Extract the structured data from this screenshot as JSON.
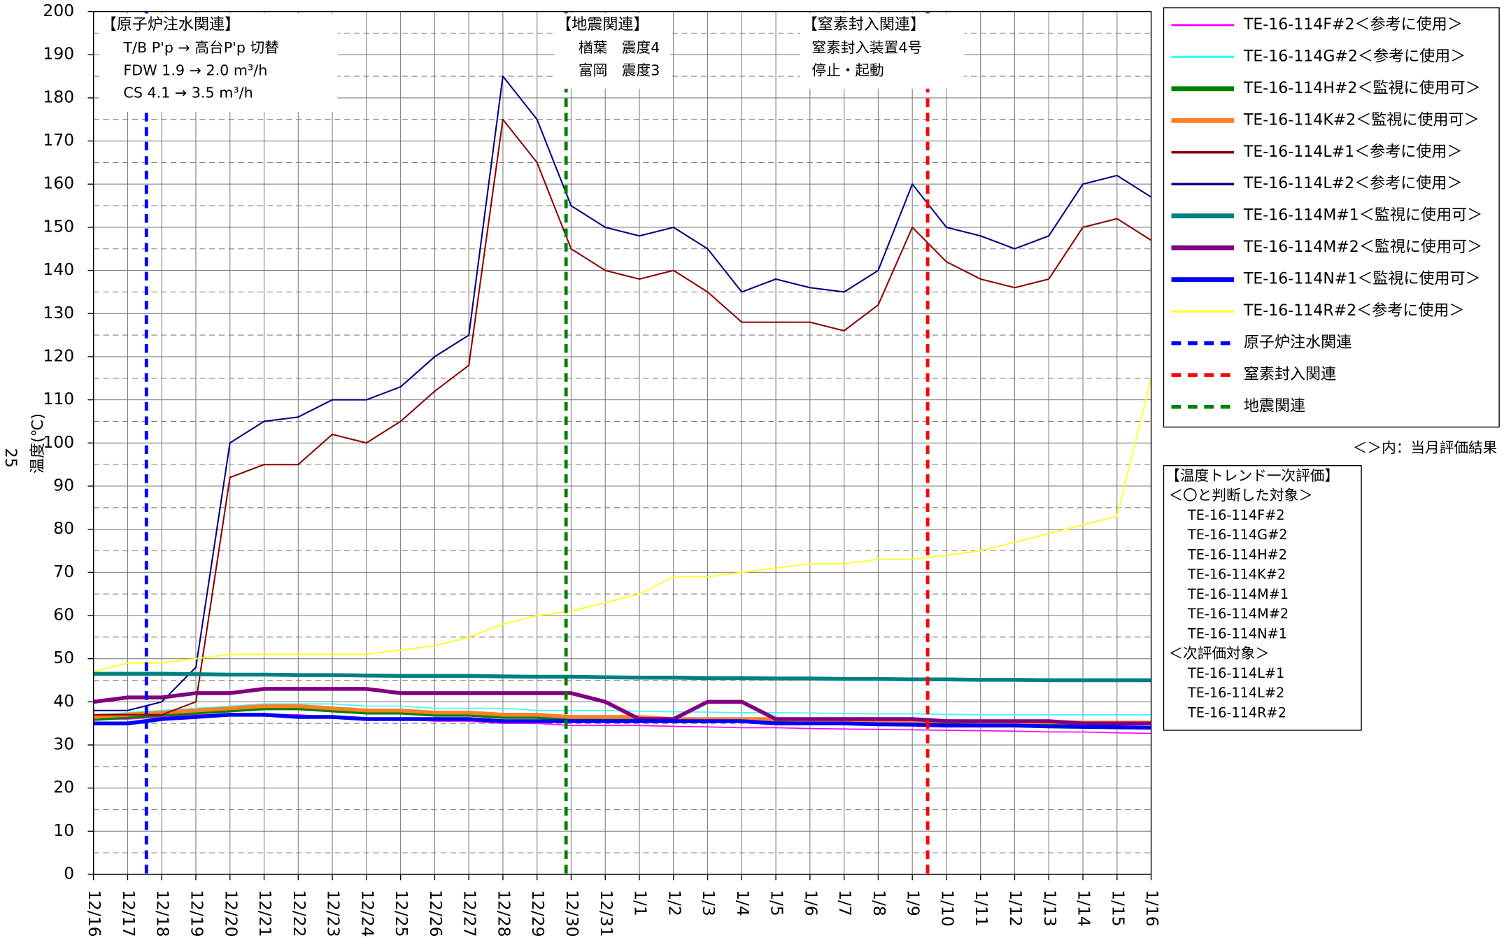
{
  "chart_data": {
    "type": "line",
    "page_number": "25",
    "y_label": "温度(℃)",
    "xlim": [
      0,
      31
    ],
    "ylim": [
      0,
      200
    ],
    "yticks": [
      0,
      10,
      20,
      30,
      40,
      50,
      60,
      70,
      80,
      90,
      100,
      110,
      120,
      130,
      140,
      150,
      160,
      170,
      180,
      190,
      200
    ],
    "xticks": [
      {
        "value": 0,
        "label": "12/16"
      },
      {
        "value": 1,
        "label": "12/17"
      },
      {
        "value": 2,
        "label": "12/18"
      },
      {
        "value": 3,
        "label": "12/19"
      },
      {
        "value": 4,
        "label": "12/20"
      },
      {
        "value": 5,
        "label": "12/21"
      },
      {
        "value": 6,
        "label": "12/22"
      },
      {
        "value": 7,
        "label": "12/23"
      },
      {
        "value": 8,
        "label": "12/24"
      },
      {
        "value": 9,
        "label": "12/25"
      },
      {
        "value": 10,
        "label": "12/26"
      },
      {
        "value": 11,
        "label": "12/27"
      },
      {
        "value": 12,
        "label": "12/28"
      },
      {
        "value": 13,
        "label": "12/29"
      },
      {
        "value": 14,
        "label": "12/30"
      },
      {
        "value": 15,
        "label": "12/31"
      },
      {
        "value": 16,
        "label": "1/1"
      },
      {
        "value": 17,
        "label": "1/2"
      },
      {
        "value": 18,
        "label": "1/3"
      },
      {
        "value": 19,
        "label": "1/4"
      },
      {
        "value": 20,
        "label": "1/5"
      },
      {
        "value": 21,
        "label": "1/6"
      },
      {
        "value": 22,
        "label": "1/7"
      },
      {
        "value": 23,
        "label": "1/8"
      },
      {
        "value": 24,
        "label": "1/9"
      },
      {
        "value": 25,
        "label": "1/10"
      },
      {
        "value": 26,
        "label": "1/11"
      },
      {
        "value": 27,
        "label": "1/12"
      },
      {
        "value": 28,
        "label": "1/13"
      },
      {
        "value": 29,
        "label": "1/14"
      },
      {
        "value": 30,
        "label": "1/15"
      },
      {
        "value": 31,
        "label": "1/16"
      }
    ],
    "grid": true,
    "x": [
      0,
      1,
      2,
      3,
      4,
      5,
      6,
      7,
      8,
      9,
      10,
      11,
      12,
      13,
      14,
      15,
      16,
      17,
      18,
      19,
      20,
      21,
      22,
      23,
      24,
      25,
      26,
      27,
      28,
      29,
      30,
      31
    ],
    "series": [
      {
        "name": "TE-16-114F#2＜参考に使用＞",
        "color": "#ff00ff",
        "line_width": 1.2,
        "values": [
          36,
          36,
          36.5,
          37,
          37,
          37,
          37,
          36.5,
          36,
          36,
          35.5,
          35.5,
          35,
          35,
          34.5,
          34.5,
          34.5,
          34.3,
          34.2,
          34,
          34,
          33.8,
          33.7,
          33.6,
          33.5,
          33.4,
          33.3,
          33.2,
          33,
          33,
          32.8,
          32.7
        ]
      },
      {
        "name": "TE-16-114G#2＜参考に使用＞",
        "color": "#33ffff",
        "line_width": 1.2,
        "values": [
          37,
          37.5,
          38,
          38.5,
          39,
          39.5,
          39.5,
          39.5,
          39,
          39,
          38.5,
          38.5,
          38.5,
          38,
          38,
          38,
          37.8,
          37.7,
          37.6,
          37.5,
          37.5,
          37.4,
          37.3,
          37.2,
          37.2,
          37.1,
          37,
          37,
          37,
          37,
          37,
          37
        ]
      },
      {
        "name": "TE-16-114H#2＜監視に使用可＞",
        "color": "#008000",
        "line_width": 4,
        "values": [
          36,
          36.5,
          37,
          37.5,
          38,
          38.5,
          38.5,
          38,
          37.5,
          37.5,
          37,
          37,
          36.5,
          36.5,
          36,
          36,
          36,
          35.8,
          35.8,
          35.8,
          35.7,
          35.6,
          35.5,
          35.4,
          35.3,
          35.2,
          35.1,
          35,
          35,
          35,
          35,
          35
        ]
      },
      {
        "name": "TE-16-114K#2＜監視に使用可＞",
        "color": "#ff7f27",
        "line_width": 4,
        "values": [
          36.5,
          37,
          37.5,
          38,
          38.5,
          39,
          39,
          38.5,
          38,
          38,
          37.5,
          37.5,
          37,
          37,
          36.5,
          36.5,
          36.5,
          36,
          36,
          36,
          36,
          35.8,
          35.7,
          35.6,
          35.5,
          35.5,
          35.4,
          35.3,
          35.3,
          35.2,
          35.2,
          35.2
        ]
      },
      {
        "name": "TE-16-114L#1＜参考に使用＞",
        "color": "#8b0000",
        "line_width": 1.5,
        "values": [
          37,
          37,
          37,
          40,
          92,
          95,
          95,
          102,
          100,
          105,
          112,
          118,
          175,
          165,
          145,
          140,
          138,
          140,
          135,
          128,
          128,
          128,
          126,
          132,
          150,
          142,
          138,
          136,
          138,
          150,
          152,
          147
        ]
      },
      {
        "name": "TE-16-114L#2＜参考に使用＞",
        "color": "#000080",
        "line_width": 1.5,
        "values": [
          38,
          38,
          40,
          48,
          100,
          105,
          106,
          110,
          110,
          113,
          120,
          125,
          185,
          175,
          155,
          150,
          148,
          150,
          145,
          135,
          138,
          136,
          135,
          140,
          160,
          150,
          148,
          145,
          148,
          160,
          162,
          157
        ]
      },
      {
        "name": "TE-16-114M#1＜監視に使用可＞",
        "color": "#008080",
        "line_width": 4,
        "values": [
          46.5,
          46.5,
          46.5,
          46.4,
          46.3,
          46.3,
          46.2,
          46.2,
          46.1,
          46,
          46,
          46,
          45.9,
          45.8,
          45.8,
          45.7,
          45.6,
          45.6,
          45.5,
          45.5,
          45.4,
          45.4,
          45.3,
          45.3,
          45.2,
          45.2,
          45.1,
          45.1,
          45,
          45,
          45,
          45
        ]
      },
      {
        "name": "TE-16-114M#2＜監視に使用可＞",
        "color": "#800080",
        "line_width": 4,
        "values": [
          40,
          41,
          41,
          42,
          42,
          43,
          43,
          43,
          43,
          42,
          42,
          42,
          42,
          42,
          42,
          40,
          36,
          36,
          40,
          40,
          36,
          36,
          36,
          36,
          36,
          35.5,
          35.5,
          35.5,
          35.5,
          35,
          35,
          35
        ]
      },
      {
        "name": "TE-16-114N#1＜監視に使用可＞",
        "color": "#0000ff",
        "line_width": 4,
        "values": [
          35,
          35,
          36,
          36.5,
          37,
          37,
          36.5,
          36.5,
          36,
          36,
          36,
          36,
          35.5,
          35.5,
          35.5,
          35.5,
          35.5,
          35.5,
          35.5,
          35.5,
          35,
          35,
          35,
          34.8,
          34.7,
          34.5,
          34.5,
          34.5,
          34.3,
          34.2,
          34.1,
          34
        ]
      },
      {
        "name": "TE-16-114R#2＜参考に使用＞",
        "color": "#ffff33",
        "line_width": 1.5,
        "values": [
          47,
          49,
          49,
          50,
          51,
          51,
          51,
          51,
          51,
          52,
          53,
          55,
          58,
          60,
          61,
          63,
          65,
          69,
          69,
          70,
          71,
          72,
          72,
          73,
          73,
          74,
          75,
          77,
          79,
          81,
          83,
          115
        ]
      }
    ],
    "events": [
      {
        "name": "原子炉注水関連",
        "color": "#0000ff",
        "x": 1.55,
        "title": "【原子炉注水関連】",
        "lines": [
          "T/B P'p → 高台P'p 切替",
          "FDW 1.9 → 2.0 m³/h",
          "CS 4.1 → 3.5 m³/h"
        ]
      },
      {
        "name": "窒素封入関連",
        "color": "#ff0000",
        "x": 24.45,
        "title": "【窒素封入関連】",
        "lines": [
          "窒素封入装置4号",
          "停止・起動"
        ]
      },
      {
        "name": "地震関連",
        "color": "#008000",
        "x": 13.85,
        "title": "【地震関連】",
        "lines": [
          "楢葉　震度4",
          "富岡　震度3"
        ]
      }
    ],
    "legend_note": "＜＞内：当月評価結果",
    "evaluation": {
      "title": "【温度トレンド一次評価】",
      "groups": [
        {
          "heading": "＜〇と判断した対象＞",
          "items": [
            "TE-16-114F#2",
            "TE-16-114G#2",
            "TE-16-114H#2",
            "TE-16-114K#2",
            "TE-16-114M#1",
            "TE-16-114M#2",
            "TE-16-114N#1"
          ]
        },
        {
          "heading": "＜次評価対象＞",
          "items": [
            "TE-16-114L#1",
            "TE-16-114L#2",
            "TE-16-114R#2"
          ]
        }
      ]
    }
  }
}
